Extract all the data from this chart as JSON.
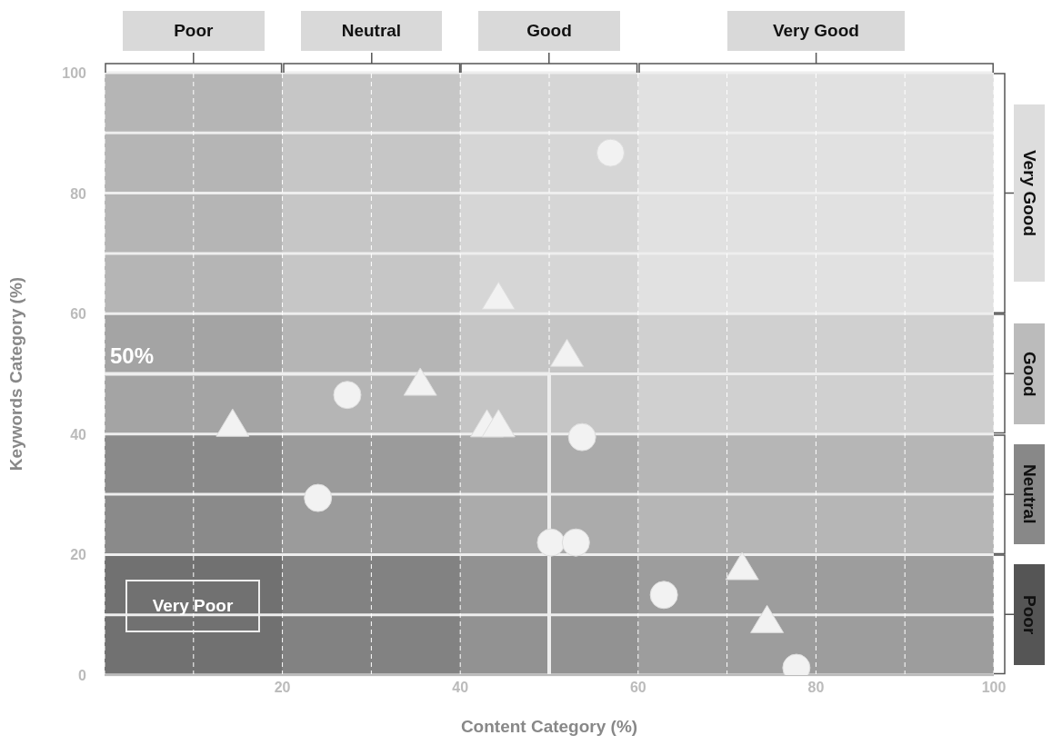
{
  "chart_data": {
    "type": "scatter",
    "xlabel": "Content Category (%)",
    "ylabel": "Keywords Category (%)",
    "xlim": [
      0,
      100
    ],
    "ylim": [
      0,
      100
    ],
    "xticks": [
      {
        "value": 0,
        "label": null
      },
      {
        "value": 10,
        "label": null
      },
      20,
      {
        "value": 30,
        "label": null
      },
      40,
      {
        "value": 50,
        "label": null
      },
      60,
      {
        "value": 70,
        "label": null
      },
      80,
      {
        "value": 90,
        "label": null
      },
      100
    ],
    "yticks": [
      0,
      {
        "value": 10,
        "label": null
      },
      20,
      {
        "value": 30,
        "label": null
      },
      40,
      {
        "value": 50,
        "label": null
      },
      60,
      {
        "value": 70,
        "label": null
      },
      80,
      {
        "value": 90,
        "label": null
      },
      100
    ],
    "grid": true,
    "bands": [
      {
        "axis": "x",
        "from": 0,
        "to": 20,
        "label": "Poor",
        "color": "#555555"
      },
      {
        "axis": "x",
        "from": 20,
        "to": 40,
        "label": "Neutral",
        "color": "#888888"
      },
      {
        "axis": "x",
        "from": 40,
        "to": 60,
        "label": "Good",
        "color": "#bbbbbb"
      },
      {
        "axis": "x",
        "from": 60,
        "to": 100,
        "label": "Very Good",
        "color": "#dddddd"
      },
      {
        "axis": "y",
        "from": 0,
        "to": 20,
        "label": "Poor",
        "color": "#555555"
      },
      {
        "axis": "y",
        "from": 20,
        "to": 40,
        "label": "Neutral",
        "color": "#888888"
      },
      {
        "axis": "y",
        "from": 40,
        "to": 60,
        "label": "Good",
        "color": "#bbbbbb"
      },
      {
        "axis": "y",
        "from": 60,
        "to": 100,
        "label": "Very Good",
        "color": "#dddddd"
      }
    ],
    "ref_lines": [
      {
        "axis": "x",
        "value": 50,
        "color": "#eeeeee"
      },
      {
        "axis": "y",
        "value": 50,
        "label": "50%",
        "color": "#eeeeee"
      }
    ],
    "annotations": [
      "Very Poor"
    ],
    "series": [
      {
        "marker": "circle",
        "color": "#f2f2f2",
        "x": [
          56.9,
          27.3,
          24.0,
          53.7,
          50.2,
          53.0,
          62.9,
          77.8
        ],
        "values": [
          86.7,
          46.5,
          29.4,
          39.5,
          22.0,
          22.0,
          13.3,
          1.2
        ]
      },
      {
        "marker": "triangle",
        "color": "#f2f2f2",
        "x": [
          14.4,
          35.5,
          44.3,
          52.0,
          43.0,
          44.3,
          71.7,
          74.5
        ],
        "values": [
          41.6,
          48.4,
          62.7,
          53.2,
          41.5,
          41.5,
          17.8,
          9.0
        ]
      }
    ]
  }
}
